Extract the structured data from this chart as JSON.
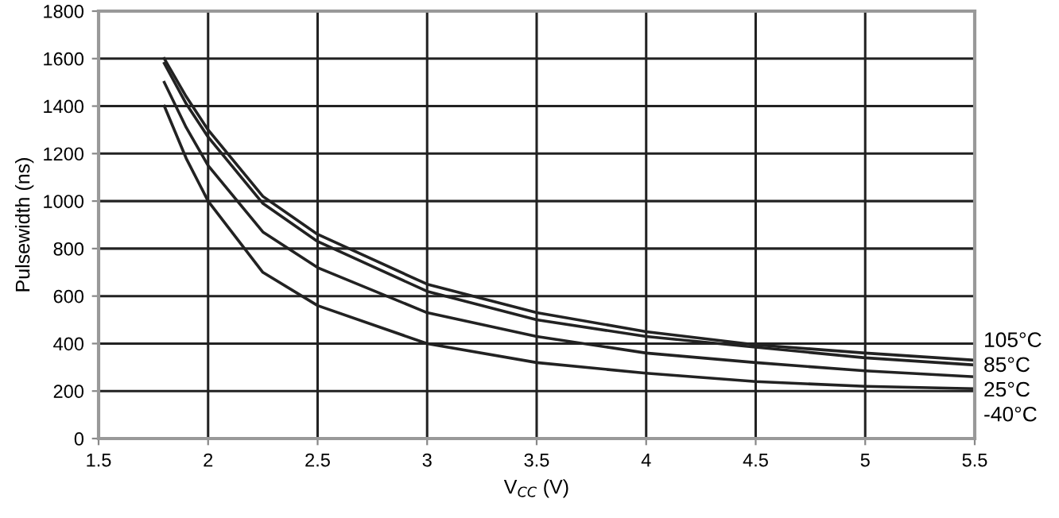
{
  "chart_data": {
    "type": "line",
    "xlabel": "V$_{CC}$ (V)",
    "ylabel": "Pulsewidth (ns)",
    "x": [
      1.8,
      1.9,
      2,
      2.25,
      2.5,
      3,
      3.5,
      4,
      4.5,
      5,
      5.5
    ],
    "series": [
      {
        "name": "105°C",
        "color": "#222222",
        "values": [
          1600,
          1440,
          1300,
          1020,
          860,
          650,
          530,
          450,
          395,
          360,
          330
        ]
      },
      {
        "name": "85°C",
        "color": "#222222",
        "values": [
          1580,
          1410,
          1270,
          990,
          830,
          620,
          500,
          430,
          385,
          340,
          310
        ]
      },
      {
        "name": "25°C",
        "color": "#222222",
        "values": [
          1500,
          1310,
          1150,
          870,
          720,
          530,
          430,
          360,
          320,
          285,
          260
        ]
      },
      {
        "name": "-40°C",
        "color": "#222222",
        "values": [
          1400,
          1180,
          1000,
          700,
          560,
          400,
          320,
          275,
          240,
          220,
          210
        ]
      }
    ],
    "xlim": [
      1.5,
      5.5
    ],
    "xticks": [
      1.5,
      2,
      2.5,
      3,
      3.5,
      4,
      4.5,
      5,
      5.5
    ],
    "ylim": [
      0,
      1800
    ],
    "yticks": [
      0,
      200,
      400,
      600,
      800,
      1000,
      1200,
      1400,
      1600,
      1800
    ],
    "grid": true,
    "legend": false,
    "marker": "none",
    "line_style": "solid"
  }
}
